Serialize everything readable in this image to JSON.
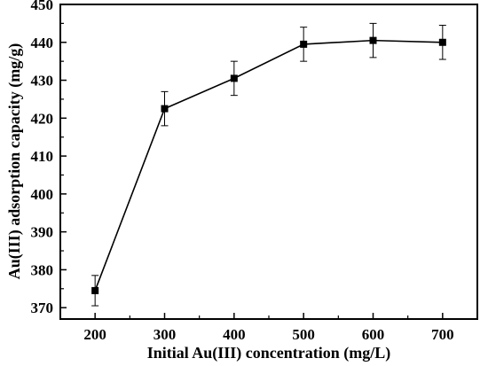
{
  "chart_data": {
    "type": "line",
    "title": "",
    "xlabel": "Initial Au(III) concentration (mg/L)",
    "ylabel": "Au(III) adsorption capacity (mg/g)",
    "xlim": [
      150,
      750
    ],
    "ylim": [
      367,
      450
    ],
    "xticks": [
      200,
      300,
      400,
      500,
      600,
      700
    ],
    "yticks": [
      370,
      380,
      390,
      400,
      410,
      420,
      430,
      440,
      450
    ],
    "grid": false,
    "legend": "none",
    "marker": "square",
    "color": "#000000",
    "series": [
      {
        "x": [
          200,
          300,
          400,
          500,
          600,
          700
        ],
        "y": [
          374.5,
          422.5,
          430.5,
          439.5,
          440.5,
          440.0
        ],
        "error": [
          4,
          4.5,
          4.5,
          4.5,
          4.5,
          4.5
        ]
      }
    ]
  }
}
